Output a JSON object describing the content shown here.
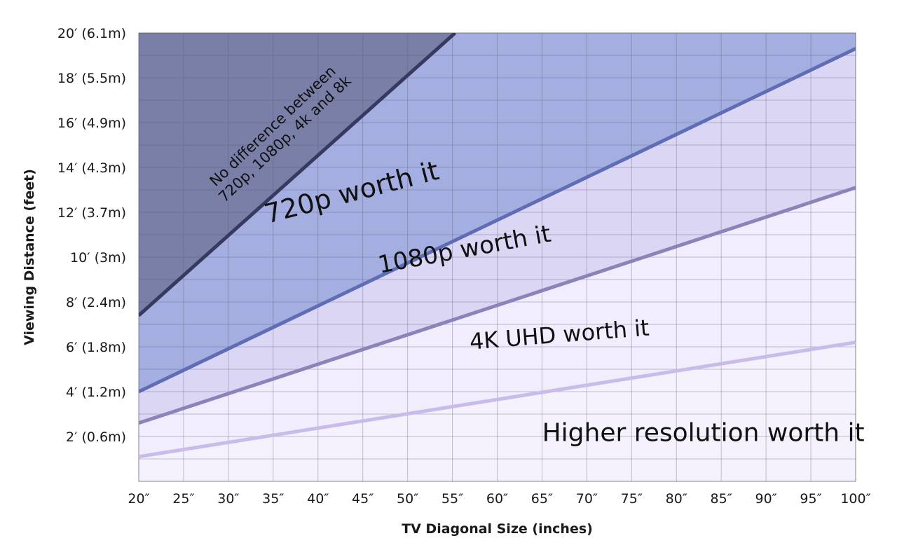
{
  "chart_data": {
    "type": "area",
    "xlabel": "TV Diagonal Size (inches)",
    "ylabel": "Viewing Distance (feet)",
    "xlim": [
      20,
      100
    ],
    "ylim": [
      0,
      20
    ],
    "x_ticks": [
      20,
      25,
      30,
      35,
      40,
      45,
      50,
      55,
      60,
      65,
      70,
      75,
      80,
      85,
      90,
      95,
      100
    ],
    "x_tick_labels": [
      "20″",
      "25″",
      "30″",
      "35″",
      "40″",
      "45″",
      "50″",
      "55″",
      "60″",
      "65″",
      "70″",
      "75″",
      "80″",
      "85″",
      "90″",
      "95″",
      "100″"
    ],
    "y_ticks": [
      2,
      4,
      6,
      8,
      10,
      12,
      14,
      16,
      18,
      20
    ],
    "y_tick_labels": [
      "2′ (0.6m)",
      "4′ (1.2m)",
      "6′ (1.8m)",
      "8′ (2.4m)",
      "10′ (3m)",
      "12′ (3.7m)",
      "14′ (4.3m)",
      "16′ (4.9m)",
      "18′ (5.5m)",
      "20′ (6.1m)"
    ],
    "grid": true,
    "minor_grid": true,
    "series": [
      {
        "x": [
          20,
          55.3
        ],
        "y": [
          7.4,
          20.0
        ],
        "color": "#353a5e"
      },
      {
        "x": [
          20,
          100
        ],
        "y": [
          4.0,
          19.3
        ],
        "color": "#5f6eb4"
      },
      {
        "x": [
          20,
          100
        ],
        "y": [
          2.6,
          13.1
        ],
        "color": "#8c84b8"
      },
      {
        "x": [
          20,
          100
        ],
        "y": [
          1.1,
          6.2
        ],
        "color": "#c9bcea"
      }
    ],
    "region_colors": [
      "#7a7fa8",
      "#a5aee0",
      "#dcd6f5",
      "#f1edfd"
    ],
    "labels": [
      {
        "text": "No difference between\n720p, 1080p, 4k and 8k",
        "x": 36,
        "y": 15.4
      },
      {
        "text": "720p worth it",
        "x": 44,
        "y": 12.5
      },
      {
        "text": "1080p worth it",
        "x": 56.5,
        "y": 10.0
      },
      {
        "text": "4K UHD worth it",
        "x": 67,
        "y": 6.2
      },
      {
        "text": "Higher resolution worth it",
        "x": 83,
        "y": 1.8
      }
    ]
  }
}
